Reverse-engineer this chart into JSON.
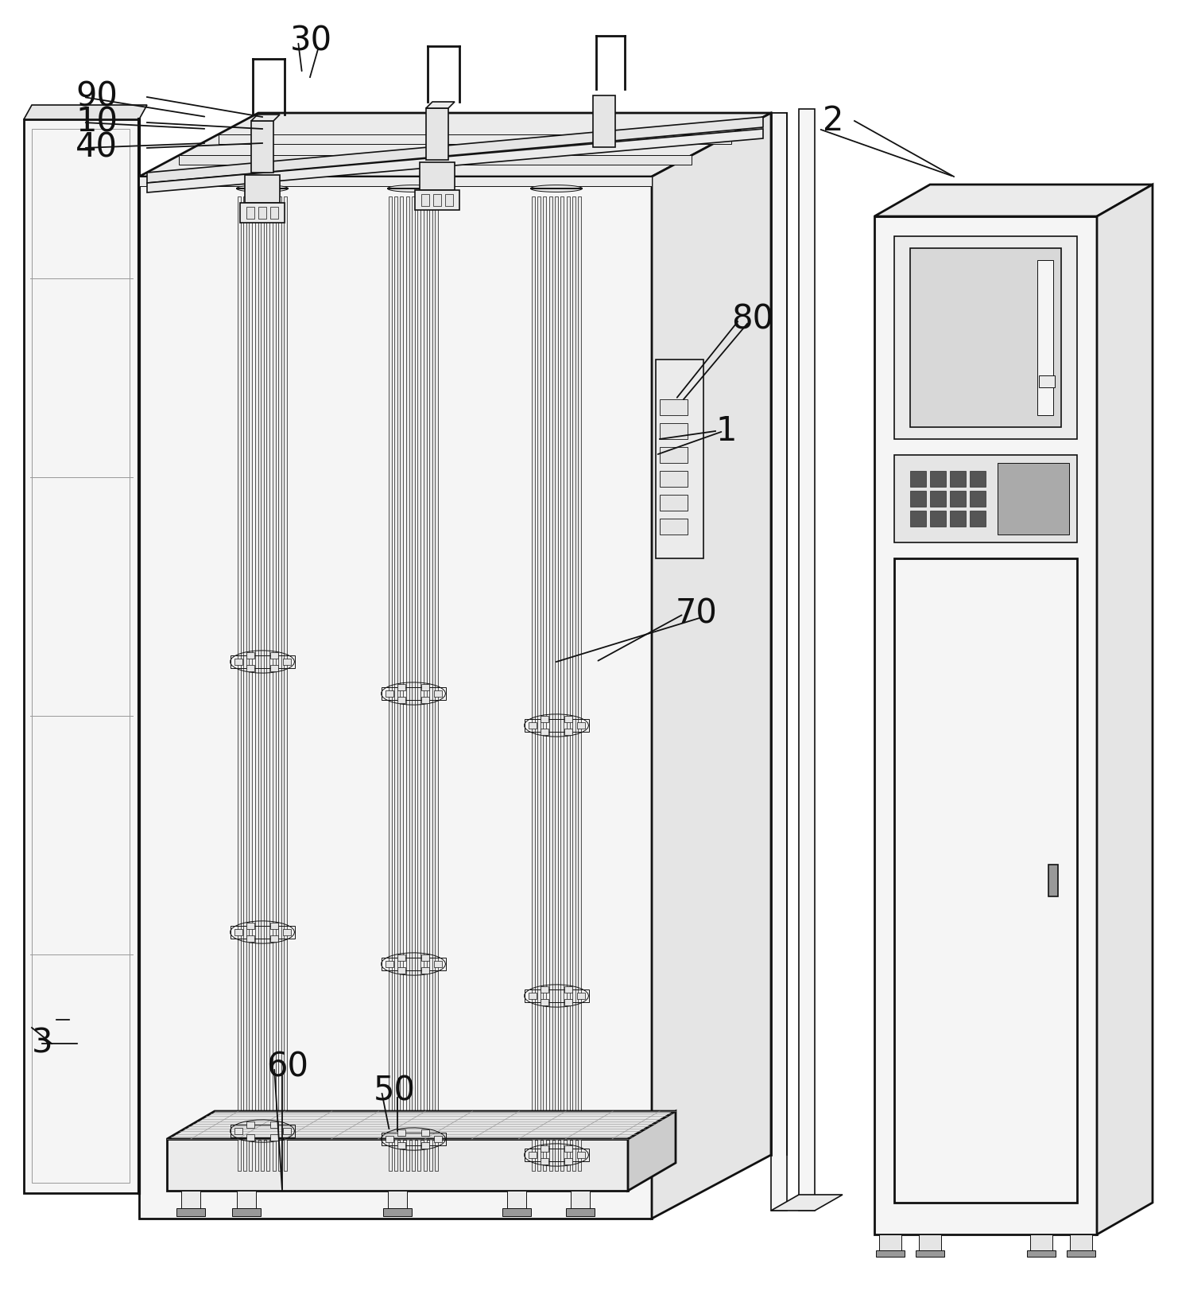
{
  "bg_color": "#ffffff",
  "lc": "#111111",
  "lg": "#cccccc",
  "mg": "#999999",
  "dg": "#444444",
  "lf": "#e5e5e5",
  "lf2": "#f5f5f5",
  "lf3": "#ebebeb"
}
